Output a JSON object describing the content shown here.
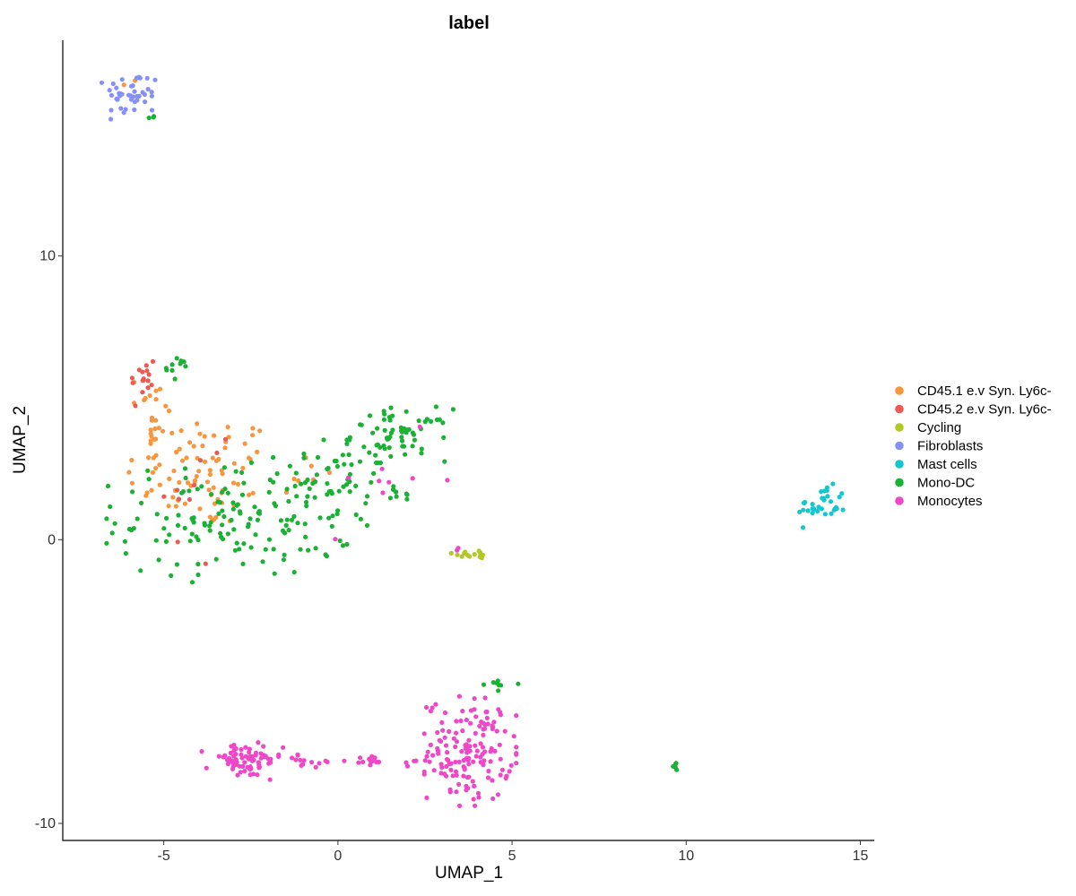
{
  "chart_data": {
    "type": "scatter",
    "title": "label",
    "xlabel": "UMAP_1",
    "ylabel": "UMAP_2",
    "xlim": [
      -7.9,
      15.4
    ],
    "ylim": [
      -10.6,
      17.6
    ],
    "xticks": [
      -5,
      0,
      5,
      10,
      15
    ],
    "yticks": [
      -10,
      0,
      10
    ],
    "grid": false,
    "legend_position": "right",
    "series": [
      {
        "name": "CD45.1 e.v Syn. Ly6c-",
        "color": "#F8963F",
        "clusters": [
          {
            "center": [
              -3.9,
              2.4
            ],
            "spread": [
              1.1,
              1.0
            ],
            "n": 85
          },
          {
            "center": [
              -5.3,
              4.3
            ],
            "spread": [
              0.25,
              1.1
            ],
            "n": 22
          },
          {
            "center": [
              -6.0,
              16.0
            ],
            "spread": [
              0.2,
              0.2
            ],
            "n": 3
          },
          {
            "center": [
              -0.9,
              2.3
            ],
            "spread": [
              0.3,
              0.4
            ],
            "n": 6
          }
        ]
      },
      {
        "name": "CD45.2 e.v Syn. Ly6c-",
        "color": "#ED5A51",
        "clusters": [
          {
            "center": [
              -5.6,
              5.6
            ],
            "spread": [
              0.2,
              0.5
            ],
            "n": 16
          },
          {
            "center": [
              -4.2,
              1.2
            ],
            "spread": [
              0.8,
              1.5
            ],
            "n": 8
          },
          {
            "center": [
              -3.4,
              3.3
            ],
            "spread": [
              0.2,
              0.2
            ],
            "n": 2
          }
        ]
      },
      {
        "name": "Cycling",
        "color": "#B2C923",
        "clusters": [
          {
            "center": [
              3.9,
              -0.5
            ],
            "spread": [
              0.3,
              0.08
            ],
            "n": 14
          }
        ]
      },
      {
        "name": "Fibroblasts",
        "color": "#8591F6",
        "clusters": [
          {
            "center": [
              -5.9,
              15.7
            ],
            "spread": [
              0.4,
              0.4
            ],
            "n": 40
          }
        ]
      },
      {
        "name": "Mast cells",
        "color": "#14C7CD",
        "clusters": [
          {
            "center": [
              13.9,
              1.2
            ],
            "spread": [
              0.35,
              0.35
            ],
            "n": 34
          }
        ]
      },
      {
        "name": "Mono-DC",
        "color": "#1AB134",
        "clusters": [
          {
            "center": [
              -2.9,
              0.7
            ],
            "spread": [
              1.7,
              1.0
            ],
            "n": 150
          },
          {
            "center": [
              -0.3,
              2.2
            ],
            "spread": [
              0.9,
              0.6
            ],
            "n": 40
          },
          {
            "center": [
              1.8,
              3.7
            ],
            "spread": [
              0.7,
              0.45
            ],
            "n": 65
          },
          {
            "center": [
              -4.6,
              6.0
            ],
            "spread": [
              0.3,
              0.2
            ],
            "n": 10
          },
          {
            "center": [
              1.8,
              1.6
            ],
            "spread": [
              0.2,
              0.2
            ],
            "n": 8
          },
          {
            "center": [
              4.6,
              -5.1
            ],
            "spread": [
              0.3,
              0.1
            ],
            "n": 8
          },
          {
            "center": [
              9.7,
              -8.0
            ],
            "spread": [
              0.06,
              0.1
            ],
            "n": 6
          },
          {
            "center": [
              -5.3,
              14.9
            ],
            "spread": [
              0.06,
              0.03
            ],
            "n": 3
          }
        ]
      },
      {
        "name": "Monocytes",
        "color": "#EE48C8",
        "clusters": [
          {
            "center": [
              3.8,
              -7.4
            ],
            "spread": [
              0.6,
              0.9
            ],
            "n": 150
          },
          {
            "center": [
              -2.7,
              -7.8
            ],
            "spread": [
              0.55,
              0.3
            ],
            "n": 70
          },
          {
            "center": [
              0.4,
              -7.8
            ],
            "spread": [
              1.5,
              0.1
            ],
            "n": 35
          },
          {
            "center": [
              1.5,
              2.0
            ],
            "spread": [
              1.0,
              0.9
            ],
            "n": 9
          },
          {
            "center": [
              3.5,
              -0.2
            ],
            "spread": [
              0.1,
              0.2
            ],
            "n": 2
          }
        ]
      }
    ]
  }
}
